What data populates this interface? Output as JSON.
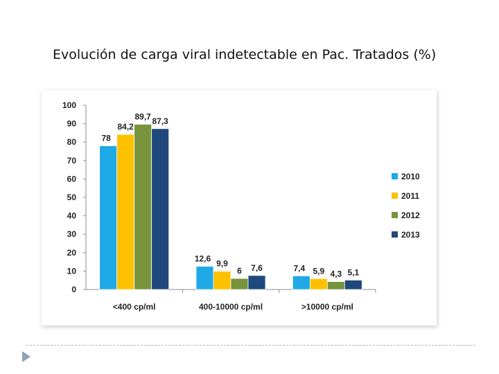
{
  "slide": {
    "title": "Evolución de carga viral indetectable en Pac. Tratados (%)"
  },
  "chart_data": {
    "type": "bar",
    "title": "",
    "xlabel": "",
    "ylabel": "",
    "ylim": [
      0,
      100
    ],
    "ytick_step": 10,
    "grid": false,
    "legend_position": "right",
    "categories": [
      "<400 cp/ml",
      "400-10000 cp/ml",
      ">10000 cp/ml"
    ],
    "series": [
      {
        "name": "2010",
        "color": "#1fa9e6",
        "values": [
          78,
          12.6,
          7.4
        ],
        "labels": [
          "78",
          "12,6",
          "7,4"
        ]
      },
      {
        "name": "2011",
        "color": "#ffc000",
        "values": [
          84.2,
          9.9,
          5.9
        ],
        "labels": [
          "84,2",
          "9,9",
          "5,9"
        ]
      },
      {
        "name": "2012",
        "color": "#77933c",
        "values": [
          89.7,
          6,
          4.3
        ],
        "labels": [
          "89,7",
          "6",
          "4,3"
        ]
      },
      {
        "name": "2013",
        "color": "#1f497d",
        "values": [
          87.3,
          7.6,
          5.1
        ],
        "labels": [
          "87,3",
          "7,6",
          "5,1"
        ]
      }
    ]
  }
}
